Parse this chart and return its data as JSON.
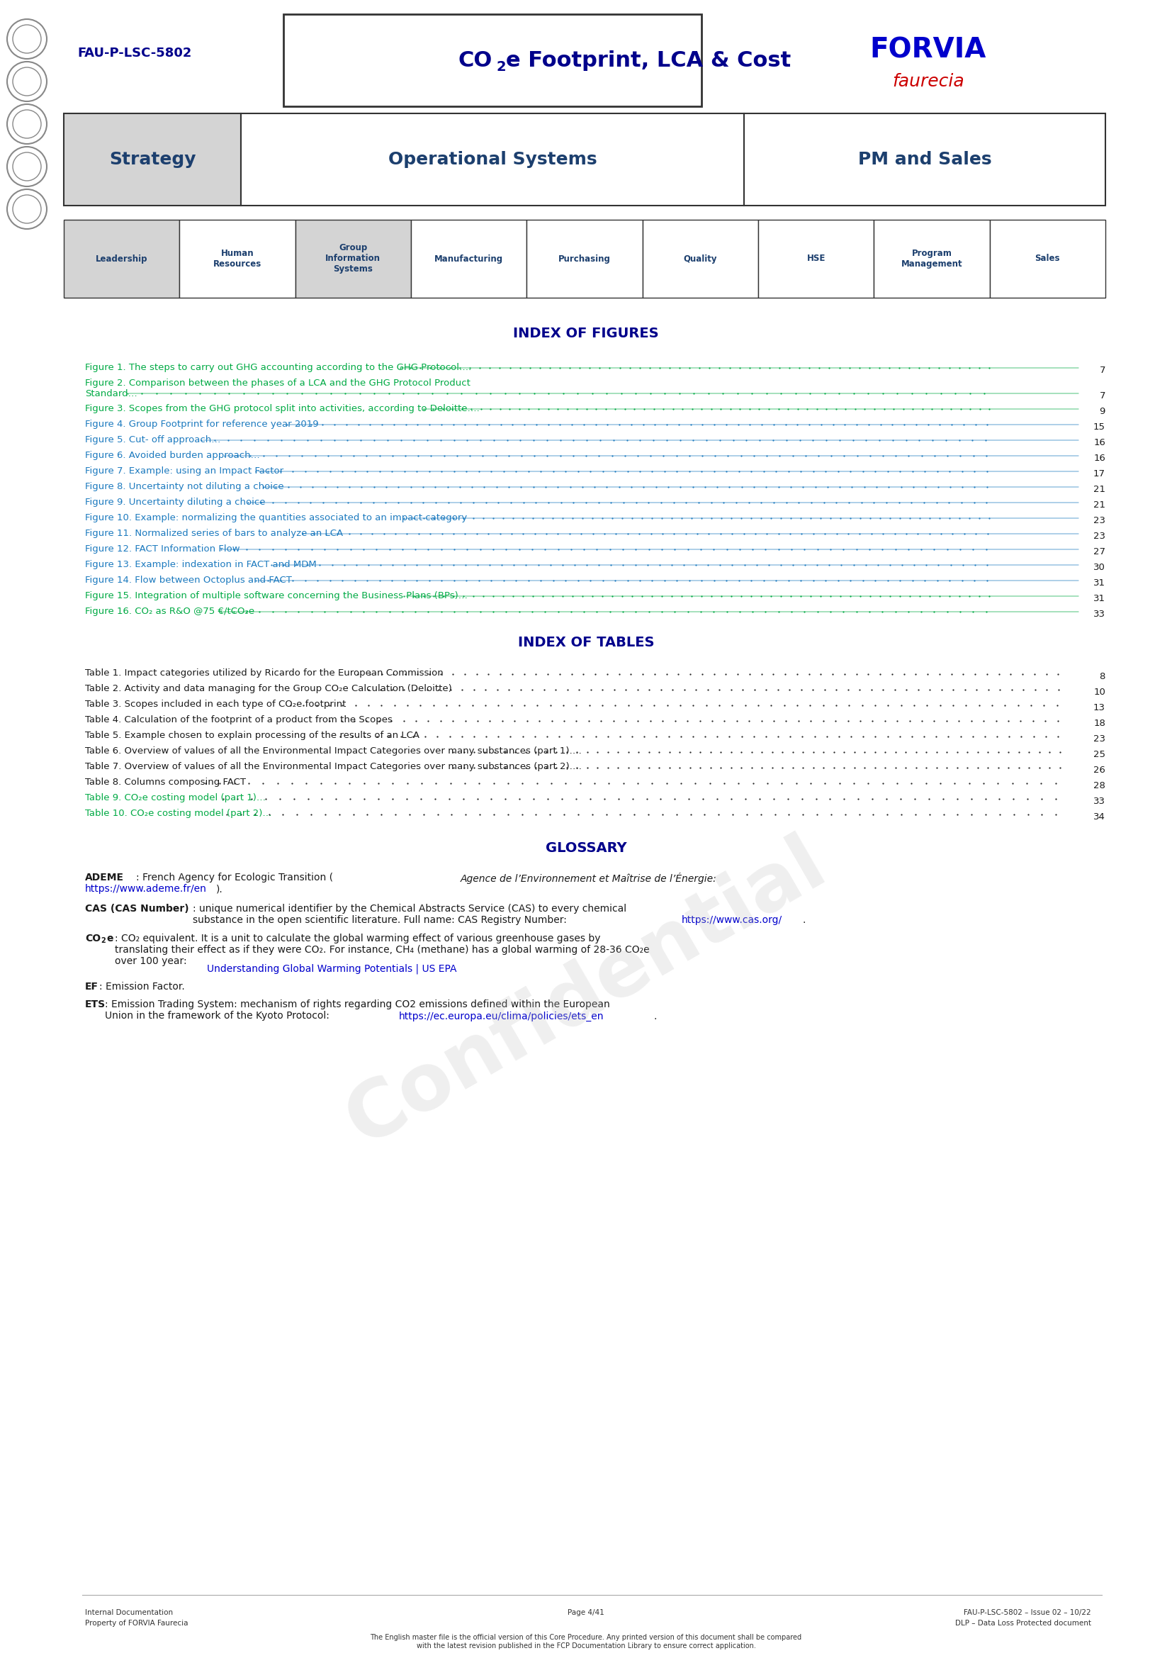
{
  "page_width": 16.54,
  "page_height": 23.39,
  "background_color": "#ffffff",
  "header": {
    "doc_id": "FAU-P-LSC-5802",
    "title": "CO₂e Footprint, LCA & Cost",
    "company": "FORVIA",
    "company_sub": "faurecia",
    "company_color": "#0000cc",
    "company_sub_color": "#cc0000",
    "title_color": "#00008B",
    "doc_id_color": "#00008B"
  },
  "strategy_row": {
    "col1": "Strategy",
    "col2": "Operational Systems",
    "col3": "PM and Sales",
    "text_color": "#1c3f6e",
    "bg_col1": "#d4d4d4",
    "bg_col2": "#ffffff",
    "bg_col3": "#ffffff"
  },
  "nav_row": {
    "items": [
      "Leadership",
      "Human\nResources",
      "Group\nInformation\nSystems",
      "Manufacturing",
      "Purchasing",
      "Quality",
      "HSE",
      "Program\nManagement",
      "Sales"
    ],
    "highlight_indices": [
      0,
      2
    ],
    "text_color": "#1c3f6e",
    "bg_highlight": "#d4d4d4",
    "bg_normal": "#ffffff"
  },
  "index_figures_title": "INDEX OF FIGURES",
  "index_figures_title_color": "#00008B",
  "figures": [
    {
      "text": "Figure 1. The steps to carry out GHG accounting according to the GHG Protocol….",
      "page": "7",
      "color": "#00aa44"
    },
    {
      "text": "Figure 2. Comparison between the phases of a LCA and the GHG Protocol Product\nStandard…",
      "page": "7",
      "color": "#00aa44"
    },
    {
      "text": "Figure 3. Scopes from the GHG protocol split into activities, according to Deloitte….",
      "page": "9",
      "color": "#00aa44"
    },
    {
      "text": "Figure 4. Group Footprint for reference year 2019 ",
      "page": "15",
      "color": "#1c7abf"
    },
    {
      "text": "Figure 5. Cut- off approach…",
      "page": "16",
      "color": "#1c7abf"
    },
    {
      "text": "Figure 6. Avoided burden approach…",
      "page": "16",
      "color": "#1c7abf"
    },
    {
      "text": "Figure 7. Example: using an Impact Factor ",
      "page": "17",
      "color": "#1c7abf"
    },
    {
      "text": "Figure 8. Uncertainty not diluting a choice ",
      "page": "21",
      "color": "#1c7abf"
    },
    {
      "text": "Figure 9. Uncertainty diluting a choice ",
      "page": "21",
      "color": "#1c7abf"
    },
    {
      "text": "Figure 10. Example: normalizing the quantities associated to an impact category ",
      "page": "23",
      "color": "#1c7abf"
    },
    {
      "text": "Figure 11. Normalized series of bars to analyze an LCA",
      "page": "23",
      "color": "#1c7abf"
    },
    {
      "text": "Figure 12. FACT Information Flow ",
      "page": "27",
      "color": "#1c7abf"
    },
    {
      "text": "Figure 13. Example: indexation in FACT and MDM",
      "page": "30",
      "color": "#1c7abf"
    },
    {
      "text": "Figure 14. Flow between Octoplus and FACT ",
      "page": "31",
      "color": "#1c7abf"
    },
    {
      "text": "Figure 15. Integration of multiple software concerning the Business Plans (BPs)…",
      "page": "31",
      "color": "#00aa44"
    },
    {
      "text": "Figure 16. CO₂ as R&O @75 €/tCO₂e",
      "page": "33",
      "color": "#00aa44"
    }
  ],
  "index_tables_title": "INDEX OF TABLES",
  "index_tables_title_color": "#00008B",
  "tables": [
    {
      "text": "Table 1. Impact categories utilized by Ricardo for the European Commission ",
      "page": "8",
      "color": "#1a1a1a"
    },
    {
      "text": "Table 2. Activity and data managing for the Group CO₂e Calculation (Deloitte) ",
      "page": "10",
      "color": "#1a1a1a"
    },
    {
      "text": "Table 3. Scopes included in each type of CO₂e footprint ",
      "page": "13",
      "color": "#1a1a1a"
    },
    {
      "text": "Table 4. Calculation of the footprint of a product from the Scopes ",
      "page": "18",
      "color": "#1a1a1a"
    },
    {
      "text": "Table 5. Example chosen to explain processing of the results of an LCA",
      "page": "23",
      "color": "#1a1a1a"
    },
    {
      "text": "Table 6. Overview of values of all the Environmental Impact Categories over many substances (part 1)….",
      "page": "25",
      "color": "#1a1a1a"
    },
    {
      "text": "Table 7. Overview of values of all the Environmental Impact Categories over many substances (part 2)….",
      "page": "26",
      "color": "#1a1a1a"
    },
    {
      "text": "Table 8. Columns composing FACT ",
      "page": "28",
      "color": "#1a1a1a"
    },
    {
      "text": "Table 9. CO₂e costing model (part 1)…",
      "page": "33",
      "color": "#00aa44"
    },
    {
      "text": "Table 10. CO₂e costing model (part 2)…",
      "page": "34",
      "color": "#00aa44"
    }
  ],
  "glossary_title": "GLOSSARY",
  "glossary_title_color": "#00008B",
  "glossary_items": [
    {
      "term": "ADEME",
      "rest": ": French Agency for Ecologic Transition (",
      "italic": "Agence de l’Environnement et Maîtrise de l’Énergie:",
      "link": "https://www.ademe.fr/en",
      "link_end": ")."
    },
    {
      "term": "CAS (CAS Number)",
      "rest": ": unique numerical identifier by the Chemical Abstracts Service (CAS) to every chemical substance in the open scientific literature. Full name: CAS Registry Number: ",
      "link": "https://www.cas.org/",
      "link_end": "."
    },
    {
      "term": "CO₂e",
      "rest_before": ": CO₂ equivalent. It is a unit to calculate the global warming effect of various greenhouse gases by translating their effect as if they were CO₂. For instance, CH₄ (methane) has a global warming of 28-36 CO₂e over 100 year: ",
      "link": "Understanding Global Warming Potentials | US EPA",
      "link_end": ""
    },
    {
      "term": "EF",
      "rest": ": Emission Factor."
    },
    {
      "term": "ETS",
      "rest": ": Emission Trading System: mechanism of rights regarding CO2 emissions defined within the European Union in the framework of the Kyoto Protocol: ",
      "link": "https://ec.europa.eu/clima/policies/ets_en",
      "link_end": "."
    }
  ],
  "footer": {
    "left_line1": "Internal Documentation",
    "left_line2": "Property of FORVIA Faurecia",
    "center_text": "Page 4/41",
    "right_line1": "FAU-P-LSC-5802 – Issue 02 – 10/22",
    "right_line2": "DLP – Data Loss Protected document",
    "bottom_text": "The English master file is the official version of this Core Procedure. Any printed version of this document shall be compared\nwith the latest revision published in the FCP Documentation Library to ensure correct application.",
    "color": "#333333"
  },
  "watermark_text": "Confidential",
  "watermark_color": "#c0c0c0",
  "watermark_alpha": 0.25
}
